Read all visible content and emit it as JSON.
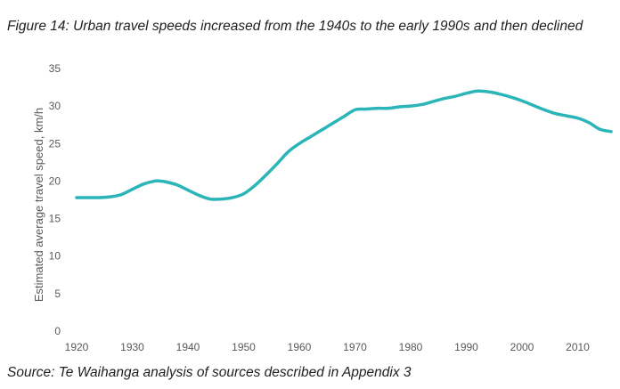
{
  "figure": {
    "title": "Figure 14: Urban travel speeds increased from the 1940s to the early 1990s and then declined",
    "source": "Source: Te Waihanga analysis of sources described in Appendix 3"
  },
  "chart_data": {
    "type": "line",
    "title": "",
    "xlabel": "",
    "ylabel": "Estimated average travel speed, km/h",
    "xlim": [
      1920,
      2016
    ],
    "ylim": [
      0,
      35
    ],
    "x_ticks": [
      1920,
      1930,
      1940,
      1950,
      1960,
      1970,
      1980,
      1990,
      2000,
      2010
    ],
    "y_ticks": [
      0,
      5,
      10,
      15,
      20,
      25,
      30,
      35
    ],
    "grid": false,
    "legend": "none",
    "series": [
      {
        "color": "#2bb5b8",
        "x": [
          1920,
          1922,
          1924,
          1926,
          1928,
          1930,
          1932,
          1934,
          1935,
          1936,
          1938,
          1940,
          1942,
          1944,
          1946,
          1948,
          1950,
          1952,
          1954,
          1956,
          1958,
          1960,
          1962,
          1964,
          1966,
          1968,
          1970,
          1972,
          1974,
          1976,
          1978,
          1980,
          1982,
          1984,
          1986,
          1988,
          1990,
          1992,
          1994,
          1996,
          1998,
          2000,
          2002,
          2004,
          2006,
          2008,
          2010,
          2012,
          2014,
          2016
        ],
        "values": [
          17.8,
          17.8,
          17.8,
          17.9,
          18.2,
          18.9,
          19.6,
          20.0,
          20.0,
          19.9,
          19.5,
          18.8,
          18.1,
          17.6,
          17.6,
          17.8,
          18.3,
          19.4,
          20.8,
          22.3,
          23.9,
          25.0,
          25.9,
          26.8,
          27.7,
          28.6,
          29.5,
          29.6,
          29.7,
          29.7,
          29.9,
          30.0,
          30.2,
          30.6,
          31.0,
          31.3,
          31.7,
          32.0,
          31.9,
          31.6,
          31.2,
          30.7,
          30.1,
          29.5,
          29.0,
          28.7,
          28.4,
          27.8,
          26.9,
          26.6
        ]
      }
    ]
  }
}
